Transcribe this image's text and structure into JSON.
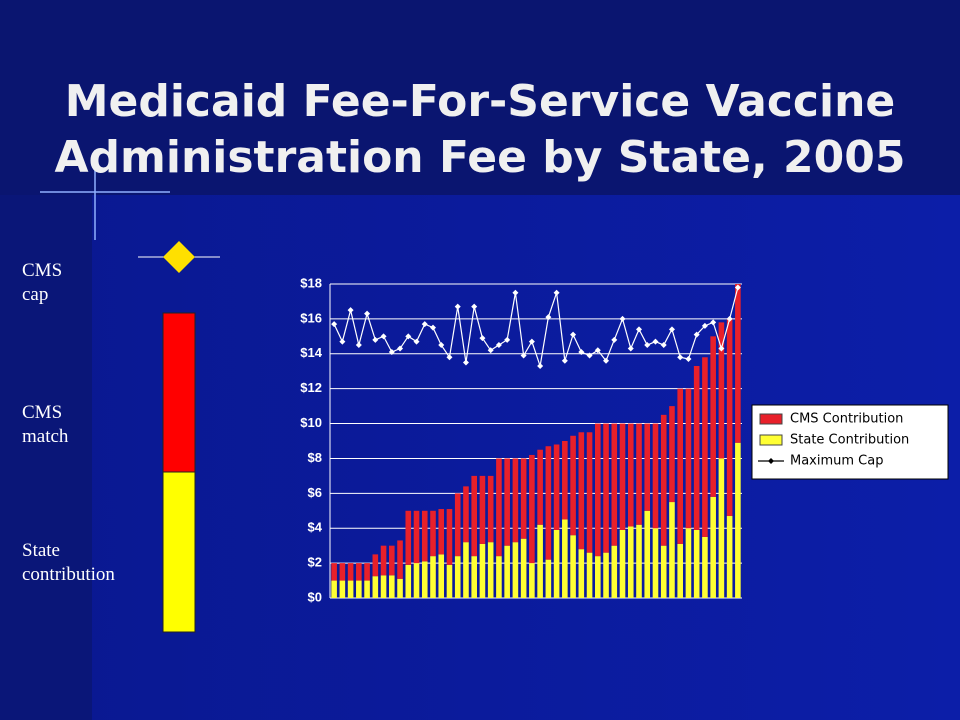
{
  "chart_data": {
    "type": "stacked_bar_line",
    "title": [
      "Medicaid Fee-For-Service Vaccine",
      "Administration Fee by State, 2005"
    ],
    "side_legend": {
      "cap": [
        "CMS",
        "cap"
      ],
      "match": [
        "CMS",
        "match"
      ],
      "state": [
        "State",
        "contribution"
      ]
    },
    "ylim": [
      0,
      18
    ],
    "yticks": [
      {
        "value": 0,
        "label": "$0"
      },
      {
        "value": 2,
        "label": "$2"
      },
      {
        "value": 4,
        "label": "$4"
      },
      {
        "value": 6,
        "label": "$6"
      },
      {
        "value": 8,
        "label": "$8"
      },
      {
        "value": 10,
        "label": "$10"
      },
      {
        "value": 12,
        "label": "$12"
      },
      {
        "value": 14,
        "label": "$14"
      },
      {
        "value": 16,
        "label": "$16"
      },
      {
        "value": 18,
        "label": "$18"
      }
    ],
    "grid": true,
    "legend": "right",
    "series": [
      {
        "name": "CMS Contribution",
        "color": "#e8202a",
        "kind": "bar",
        "values": [
          1,
          1,
          1,
          1,
          1,
          1.25,
          1.7,
          1.7,
          2.2,
          3.1,
          3,
          2.9,
          2.6,
          2.6,
          3.2,
          3.6,
          3.2,
          4.6,
          3.9,
          3.8,
          5.6,
          5,
          4.8,
          4.6,
          6.2,
          4.3,
          6.5,
          4.9,
          4.5,
          5.7,
          6.7,
          6.9,
          7.6,
          7.4,
          7,
          6.1,
          5.9,
          5.8,
          5,
          6,
          7.5,
          5.5,
          8.9,
          8,
          9.4,
          10.3,
          9.2,
          7.8,
          11.3,
          9.1
        ]
      },
      {
        "name": "State Contribution",
        "color": "#ffff33",
        "kind": "bar",
        "values": [
          1,
          1,
          1,
          1,
          1,
          1.25,
          1.3,
          1.3,
          1.1,
          1.9,
          2,
          2.1,
          2.4,
          2.5,
          1.9,
          2.4,
          3.2,
          2.4,
          3.1,
          3.2,
          2.4,
          3.0,
          3.2,
          3.4,
          2.0,
          4.2,
          2.2,
          3.9,
          4.5,
          3.6,
          2.8,
          2.6,
          2.4,
          2.6,
          3.0,
          3.9,
          4.1,
          4.2,
          5.0,
          4.0,
          3.0,
          5.5,
          3.1,
          4.0,
          3.9,
          3.5,
          5.8,
          8.0,
          4.7,
          8.9
        ]
      },
      {
        "name": "Maximum Cap",
        "color": "#ffffff",
        "kind": "line",
        "values": [
          15.7,
          14.7,
          16.5,
          14.5,
          16.3,
          14.8,
          15.0,
          14.1,
          14.3,
          15.0,
          14.7,
          15.7,
          15.5,
          14.5,
          13.8,
          16.7,
          13.5,
          16.7,
          14.9,
          14.2,
          14.5,
          14.8,
          17.5,
          13.9,
          14.7,
          13.3,
          16.1,
          17.5,
          13.6,
          15.1,
          14.1,
          13.9,
          14.2,
          13.6,
          14.8,
          16.0,
          14.3,
          15.4,
          14.5,
          14.7,
          14.5,
          15.4,
          13.8,
          13.7,
          15.1,
          15.6,
          15.8,
          14.3,
          16.0,
          17.8
        ]
      }
    ]
  }
}
